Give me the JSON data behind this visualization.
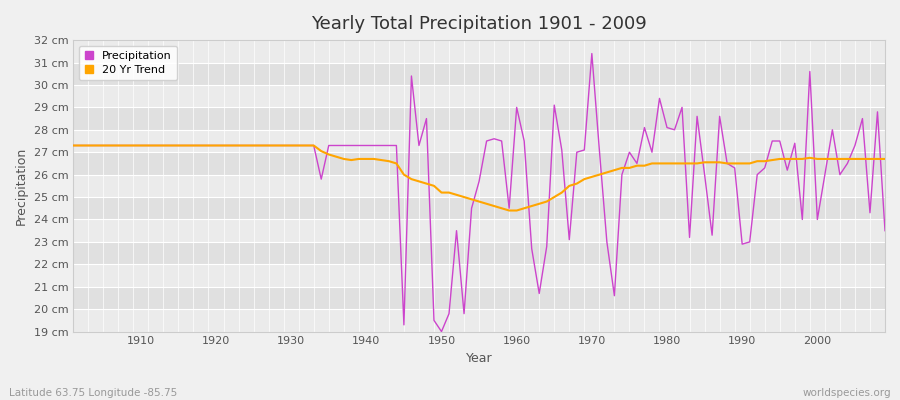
{
  "title": "Yearly Total Precipitation 1901 - 2009",
  "xlabel": "Year",
  "ylabel": "Precipitation",
  "subtitle": "Latitude 63.75 Longitude -85.75",
  "watermark": "worldspecies.org",
  "ylim": [
    19,
    32
  ],
  "yticks": [
    19,
    20,
    21,
    22,
    23,
    24,
    25,
    26,
    27,
    28,
    29,
    30,
    31,
    32
  ],
  "ytick_labels": [
    "19 cm",
    "20 cm",
    "21 cm",
    "22 cm",
    "23 cm",
    "24 cm",
    "25 cm",
    "26 cm",
    "27 cm",
    "28 cm",
    "29 cm",
    "30 cm",
    "31 cm",
    "32 cm"
  ],
  "xlim": [
    1901,
    2009
  ],
  "xticks": [
    1910,
    1920,
    1930,
    1940,
    1950,
    1960,
    1970,
    1980,
    1990,
    2000
  ],
  "precip_color": "#CC44CC",
  "trend_color": "#FFA500",
  "bg_color": "#F0F0F0",
  "plot_bg_color": "#E8E8E8",
  "stripe_color_light": "#EBEBEB",
  "stripe_color_dark": "#E0E0E0",
  "grid_color": "#FFFFFF",
  "years": [
    1901,
    1902,
    1903,
    1904,
    1905,
    1906,
    1907,
    1908,
    1909,
    1910,
    1911,
    1912,
    1913,
    1914,
    1915,
    1916,
    1917,
    1918,
    1919,
    1920,
    1921,
    1922,
    1923,
    1924,
    1925,
    1926,
    1927,
    1928,
    1929,
    1930,
    1931,
    1932,
    1933,
    1934,
    1935,
    1936,
    1937,
    1938,
    1939,
    1940,
    1941,
    1942,
    1943,
    1944,
    1945,
    1946,
    1947,
    1948,
    1949,
    1950,
    1951,
    1952,
    1953,
    1954,
    1955,
    1956,
    1957,
    1958,
    1959,
    1960,
    1961,
    1962,
    1963,
    1964,
    1965,
    1966,
    1967,
    1968,
    1969,
    1970,
    1971,
    1972,
    1973,
    1974,
    1975,
    1976,
    1977,
    1978,
    1979,
    1980,
    1981,
    1982,
    1983,
    1984,
    1985,
    1986,
    1987,
    1988,
    1989,
    1990,
    1991,
    1992,
    1993,
    1994,
    1995,
    1996,
    1997,
    1998,
    1999,
    2000,
    2001,
    2002,
    2003,
    2004,
    2005,
    2006,
    2007,
    2008,
    2009
  ],
  "precip": [
    27.3,
    27.3,
    27.3,
    27.3,
    27.3,
    27.3,
    27.3,
    27.3,
    27.3,
    27.3,
    27.3,
    27.3,
    27.3,
    27.3,
    27.3,
    27.3,
    27.3,
    27.3,
    27.3,
    27.3,
    27.3,
    27.3,
    27.3,
    27.3,
    27.3,
    27.3,
    27.3,
    27.3,
    27.3,
    27.3,
    27.3,
    27.3,
    27.3,
    25.8,
    27.3,
    27.3,
    27.3,
    27.3,
    27.3,
    27.3,
    27.3,
    27.3,
    27.3,
    27.3,
    19.3,
    30.4,
    27.3,
    28.5,
    19.5,
    19.0,
    19.8,
    23.5,
    19.8,
    24.5,
    25.7,
    27.5,
    27.6,
    27.5,
    24.5,
    29.0,
    27.5,
    22.7,
    20.7,
    22.8,
    29.1,
    27.1,
    23.1,
    27.0,
    27.1,
    31.4,
    27.1,
    23.0,
    20.6,
    26.0,
    27.0,
    26.5,
    28.1,
    27.0,
    29.4,
    28.1,
    28.0,
    29.0,
    23.2,
    28.6,
    26.0,
    23.3,
    28.6,
    26.5,
    26.3,
    22.9,
    23.0,
    26.0,
    26.3,
    27.5,
    27.5,
    26.2,
    27.4,
    24.0,
    30.6,
    24.0,
    26.0,
    28.0,
    26.0,
    26.5,
    27.3,
    28.5,
    24.3,
    28.8,
    23.5
  ],
  "trend": [
    27.3,
    27.3,
    27.3,
    27.3,
    27.3,
    27.3,
    27.3,
    27.3,
    27.3,
    27.3,
    27.3,
    27.3,
    27.3,
    27.3,
    27.3,
    27.3,
    27.3,
    27.3,
    27.3,
    27.3,
    27.3,
    27.3,
    27.3,
    27.3,
    27.3,
    27.3,
    27.3,
    27.3,
    27.3,
    27.3,
    27.3,
    27.3,
    27.3,
    27.05,
    26.9,
    26.8,
    26.7,
    26.65,
    26.7,
    26.7,
    26.7,
    26.65,
    26.6,
    26.5,
    26.0,
    25.8,
    25.7,
    25.6,
    25.5,
    25.2,
    25.2,
    25.1,
    25.0,
    24.9,
    24.8,
    24.7,
    24.6,
    24.5,
    24.4,
    24.4,
    24.5,
    24.6,
    24.7,
    24.8,
    25.0,
    25.2,
    25.5,
    25.6,
    25.8,
    25.9,
    26.0,
    26.1,
    26.2,
    26.3,
    26.3,
    26.4,
    26.4,
    26.5,
    26.5,
    26.5,
    26.5,
    26.5,
    26.5,
    26.5,
    26.55,
    26.55,
    26.55,
    26.5,
    26.5,
    26.5,
    26.5,
    26.6,
    26.6,
    26.65,
    26.7,
    26.7,
    26.7,
    26.7,
    26.75,
    26.7,
    26.7,
    26.7,
    26.7,
    26.7,
    26.7,
    26.7,
    26.7,
    26.7,
    26.7
  ]
}
